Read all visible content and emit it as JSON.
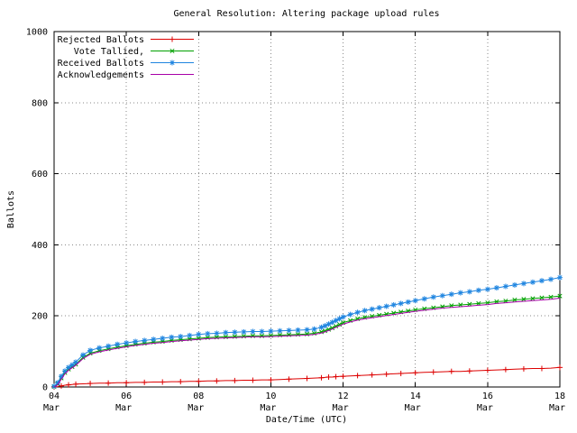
{
  "chart_data": {
    "type": "line",
    "title": "General Resolution: Altering package upload rules",
    "xlabel": "Date/Time (UTC)",
    "ylabel": "Ballots",
    "xlim": [
      4,
      18
    ],
    "ylim": [
      0,
      1000
    ],
    "grid": true,
    "legend_position": "top-left",
    "y_ticks": [
      0,
      200,
      400,
      600,
      800,
      1000
    ],
    "x_ticks": [
      {
        "v": 4,
        "day": "04",
        "month": "Mar"
      },
      {
        "v": 6,
        "day": "06",
        "month": "Mar"
      },
      {
        "v": 8,
        "day": "08",
        "month": "Mar"
      },
      {
        "v": 10,
        "day": "10",
        "month": "Mar"
      },
      {
        "v": 12,
        "day": "12",
        "month": "Mar"
      },
      {
        "v": 14,
        "day": "14",
        "month": "Mar"
      },
      {
        "v": 16,
        "day": "16",
        "month": "Mar"
      },
      {
        "v": 18,
        "day": "18",
        "month": "Mar"
      }
    ],
    "x": [
      4.0,
      4.1,
      4.2,
      4.3,
      4.4,
      4.5,
      4.6,
      4.8,
      5.0,
      5.25,
      5.5,
      5.75,
      6.0,
      6.25,
      6.5,
      6.75,
      7.0,
      7.25,
      7.5,
      7.75,
      8.0,
      8.25,
      8.5,
      8.75,
      9.0,
      9.25,
      9.5,
      9.75,
      10.0,
      10.25,
      10.5,
      10.75,
      11.0,
      11.2,
      11.4,
      11.5,
      11.6,
      11.7,
      11.8,
      11.9,
      12.0,
      12.2,
      12.4,
      12.6,
      12.8,
      13.0,
      13.2,
      13.4,
      13.6,
      13.8,
      14.0,
      14.25,
      14.5,
      14.75,
      15.0,
      15.25,
      15.5,
      15.75,
      16.0,
      16.25,
      16.5,
      16.75,
      17.0,
      17.25,
      17.5,
      17.75,
      18.0
    ],
    "series": [
      {
        "id": "rejected-ballots",
        "name": "Rejected Ballots",
        "color": "#dd0000",
        "marker": "+",
        "marker_every": 2,
        "values": [
          0,
          1,
          3,
          5,
          6,
          7,
          8,
          9,
          10,
          11,
          11,
          12,
          12,
          13,
          13,
          14,
          14,
          15,
          15,
          16,
          16,
          17,
          17,
          18,
          18,
          19,
          19,
          20,
          20,
          21,
          22,
          23,
          24,
          25,
          26,
          27,
          28,
          28,
          29,
          30,
          30,
          31,
          32,
          33,
          34,
          35,
          36,
          37,
          38,
          39,
          40,
          41,
          42,
          43,
          44,
          44,
          45,
          46,
          47,
          48,
          49,
          50,
          51,
          52,
          52,
          53,
          55
        ]
      },
      {
        "id": "vote-tallied",
        "name": "Vote Tallied,",
        "color": "#00a000",
        "marker": "x",
        "marker_every": 1,
        "values": [
          1,
          9,
          25,
          40,
          50,
          57,
          64,
          83,
          95,
          102,
          107,
          112,
          116,
          120,
          123,
          126,
          128,
          131,
          133,
          135,
          137,
          139,
          140,
          141,
          142,
          143,
          144,
          144,
          145,
          146,
          147,
          148,
          149,
          151,
          155,
          158,
          162,
          166,
          171,
          176,
          181,
          187,
          192,
          196,
          199,
          202,
          205,
          208,
          211,
          214,
          217,
          220,
          223,
          226,
          229,
          231,
          233,
          235,
          237,
          240,
          242,
          245,
          247,
          249,
          251,
          253,
          256
        ]
      },
      {
        "id": "received-ballots",
        "name": "Received Ballots",
        "color": "#1f85e0",
        "marker": "*",
        "marker_every": 1,
        "values": [
          2,
          12,
          30,
          45,
          55,
          62,
          70,
          90,
          103,
          110,
          115,
          120,
          124,
          128,
          131,
          134,
          137,
          140,
          142,
          145,
          148,
          150,
          151,
          153,
          154,
          155,
          156,
          156,
          157,
          158,
          159,
          160,
          161,
          163,
          168,
          172,
          177,
          182,
          187,
          192,
          197,
          204,
          210,
          215,
          219,
          223,
          227,
          231,
          235,
          239,
          243,
          248,
          253,
          257,
          261,
          265,
          268,
          272,
          275,
          279,
          283,
          287,
          291,
          295,
          299,
          303,
          308
        ]
      },
      {
        "id": "acknowledgements",
        "name": "Acknowledgements",
        "color": "#a800a8",
        "marker": "none",
        "marker_every": 1,
        "values": [
          0,
          6,
          22,
          37,
          47,
          54,
          61,
          80,
          92,
          99,
          104,
          109,
          113,
          117,
          120,
          123,
          125,
          128,
          130,
          132,
          134,
          136,
          137,
          138,
          139,
          140,
          141,
          141,
          142,
          143,
          144,
          145,
          146,
          148,
          152,
          155,
          159,
          163,
          168,
          172,
          177,
          183,
          188,
          192,
          195,
          198,
          201,
          204,
          207,
          210,
          213,
          216,
          219,
          222,
          224,
          226,
          228,
          230,
          232,
          235,
          237,
          239,
          241,
          243,
          245,
          247,
          250
        ]
      }
    ]
  }
}
